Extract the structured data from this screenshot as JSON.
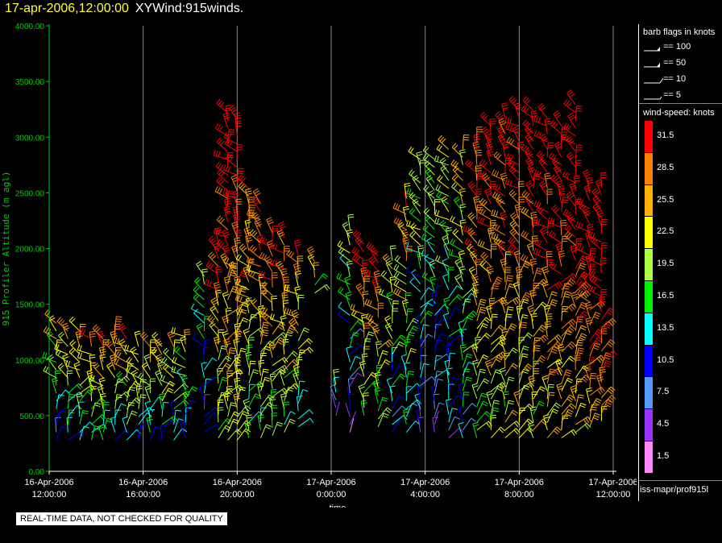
{
  "header": {
    "datetime": "17-apr-2006,12:00:00",
    "title": "XYWind:915winds."
  },
  "legend": {
    "barb_title": "barb flags in knots",
    "barbs": [
      {
        "label": "== 100",
        "kind": "pennant"
      },
      {
        "label": "== 50",
        "kind": "pennant"
      },
      {
        "label": "== 10",
        "kind": "full"
      },
      {
        "label": "== 5",
        "kind": "half"
      }
    ],
    "speed_title": "wind-speed: knots",
    "scale": [
      {
        "label": "31.5",
        "color": "#ff0000"
      },
      {
        "label": "28.5",
        "color": "#ff8000"
      },
      {
        "label": "25.5",
        "color": "#ffb000"
      },
      {
        "label": "22.5",
        "color": "#ffff00"
      },
      {
        "label": "19.5",
        "color": "#aaff44"
      },
      {
        "label": "16.5",
        "color": "#00ee00"
      },
      {
        "label": "13.5",
        "color": "#00ffff"
      },
      {
        "label": "10.5",
        "color": "#0000ff"
      },
      {
        "label": "7.5",
        "color": "#5599ff"
      },
      {
        "label": "4.5",
        "color": "#9933ff"
      },
      {
        "label": "1.5",
        "color": "#ff88ff"
      }
    ],
    "source": "iss-mapr/prof915l"
  },
  "disclaimer": "REAL-TIME DATA, NOT CHECKED FOR QUALITY",
  "chart_data": {
    "type": "scatter",
    "title": "XYWind:915winds.",
    "xlabel": "time",
    "ylabel": "915 Profiler Altitude (m agl)",
    "ylim": [
      0,
      4000
    ],
    "xlim": [
      0,
      24
    ],
    "yticks": [
      "0.00",
      "500.00",
      "1000.00",
      "1500.00",
      "2000.00",
      "2500.00",
      "3000.00",
      "3500.00",
      "4000.00"
    ],
    "xticks": [
      {
        "v": 0,
        "l1": "16-Apr-2006",
        "l2": "12:00:00"
      },
      {
        "v": 4,
        "l1": "16-Apr-2006",
        "l2": "16:00:00"
      },
      {
        "v": 8,
        "l1": "16-Apr-2006",
        "l2": "20:00:00"
      },
      {
        "v": 12,
        "l1": "17-Apr-2006",
        "l2": "0:00:00"
      },
      {
        "v": 16,
        "l1": "17-Apr-2006",
        "l2": "4:00:00"
      },
      {
        "v": 20,
        "l1": "17-Apr-2006",
        "l2": "8:00:00"
      },
      {
        "v": 24,
        "l1": "17-Apr-2006",
        "l2": "12:00:00"
      }
    ],
    "grid": "vertical",
    "series_note": "wind barbs colored by wind speed (knots)",
    "columns": [
      {
        "t": 0.3,
        "alt": [
          280,
          1350
        ],
        "spd": 14
      },
      {
        "t": 0.8,
        "alt": [
          280,
          1300
        ],
        "spd": 17
      },
      {
        "t": 1.3,
        "alt": [
          280,
          1300
        ],
        "spd": 18
      },
      {
        "t": 1.8,
        "alt": [
          280,
          1250
        ],
        "spd": 19
      },
      {
        "t": 2.3,
        "alt": [
          280,
          1200
        ],
        "spd": 20
      },
      {
        "t": 2.8,
        "alt": [
          280,
          1300
        ],
        "spd": 19
      },
      {
        "t": 3.3,
        "alt": [
          280,
          1200
        ],
        "spd": 18
      },
      {
        "t": 3.8,
        "alt": [
          280,
          1150
        ],
        "spd": 17
      },
      {
        "t": 4.3,
        "alt": [
          280,
          1150
        ],
        "spd": 16
      },
      {
        "t": 4.8,
        "alt": [
          280,
          1150
        ],
        "spd": 17
      },
      {
        "t": 5.3,
        "alt": [
          280,
          1150
        ],
        "spd": 16
      },
      {
        "t": 5.8,
        "alt": [
          300,
          1250
        ],
        "spd": 15
      },
      {
        "t": 6.6,
        "alt": [
          350,
          1800
        ],
        "spd": 12
      },
      {
        "t": 7.2,
        "alt": [
          300,
          2100
        ],
        "spd": 22
      },
      {
        "t": 7.6,
        "alt": [
          280,
          3250
        ],
        "spd": 26
      },
      {
        "t": 8.0,
        "alt": [
          280,
          3150
        ],
        "spd": 25
      },
      {
        "t": 8.5,
        "alt": [
          300,
          2550
        ],
        "spd": 20
      },
      {
        "t": 9.0,
        "alt": [
          300,
          2400
        ],
        "spd": 21
      },
      {
        "t": 9.5,
        "alt": [
          320,
          2200
        ],
        "spd": 22
      },
      {
        "t": 10.0,
        "alt": [
          350,
          2100
        ],
        "spd": 21
      },
      {
        "t": 10.6,
        "alt": [
          400,
          2000
        ],
        "spd": 19
      },
      {
        "t": 11.3,
        "alt": [
          1600,
          1900
        ],
        "spd": 20
      },
      {
        "t": 12.2,
        "alt": [
          500,
          800
        ],
        "spd": 6
      },
      {
        "t": 12.8,
        "alt": [
          350,
          2200
        ],
        "spd": 10
      },
      {
        "t": 13.4,
        "alt": [
          500,
          2050
        ],
        "spd": 22
      },
      {
        "t": 14.0,
        "alt": [
          400,
          1950
        ],
        "spd": 21
      },
      {
        "t": 14.6,
        "alt": [
          350,
          1900
        ],
        "spd": 14
      },
      {
        "t": 15.2,
        "alt": [
          350,
          2500
        ],
        "spd": 18
      },
      {
        "t": 15.8,
        "alt": [
          350,
          2800
        ],
        "spd": 12
      },
      {
        "t": 16.4,
        "alt": [
          350,
          2800
        ],
        "spd": 11
      },
      {
        "t": 17.0,
        "alt": [
          300,
          2900
        ],
        "spd": 13
      },
      {
        "t": 17.6,
        "alt": [
          300,
          2950
        ],
        "spd": 15
      },
      {
        "t": 18.2,
        "alt": [
          300,
          3000
        ],
        "spd": 22
      },
      {
        "t": 18.8,
        "alt": [
          300,
          3100
        ],
        "spd": 24
      },
      {
        "t": 19.4,
        "alt": [
          300,
          3200
        ],
        "spd": 24
      },
      {
        "t": 20.0,
        "alt": [
          300,
          3300
        ],
        "spd": 25
      },
      {
        "t": 20.6,
        "alt": [
          300,
          3300
        ],
        "spd": 25
      },
      {
        "t": 21.2,
        "alt": [
          300,
          3200
        ],
        "spd": 26
      },
      {
        "t": 21.8,
        "alt": [
          300,
          3100
        ],
        "spd": 27
      },
      {
        "t": 22.4,
        "alt": [
          350,
          3350
        ],
        "spd": 28
      },
      {
        "t": 23.0,
        "alt": [
          400,
          2600
        ],
        "spd": 29
      },
      {
        "t": 23.5,
        "alt": [
          450,
          2600
        ],
        "spd": 30
      }
    ]
  }
}
